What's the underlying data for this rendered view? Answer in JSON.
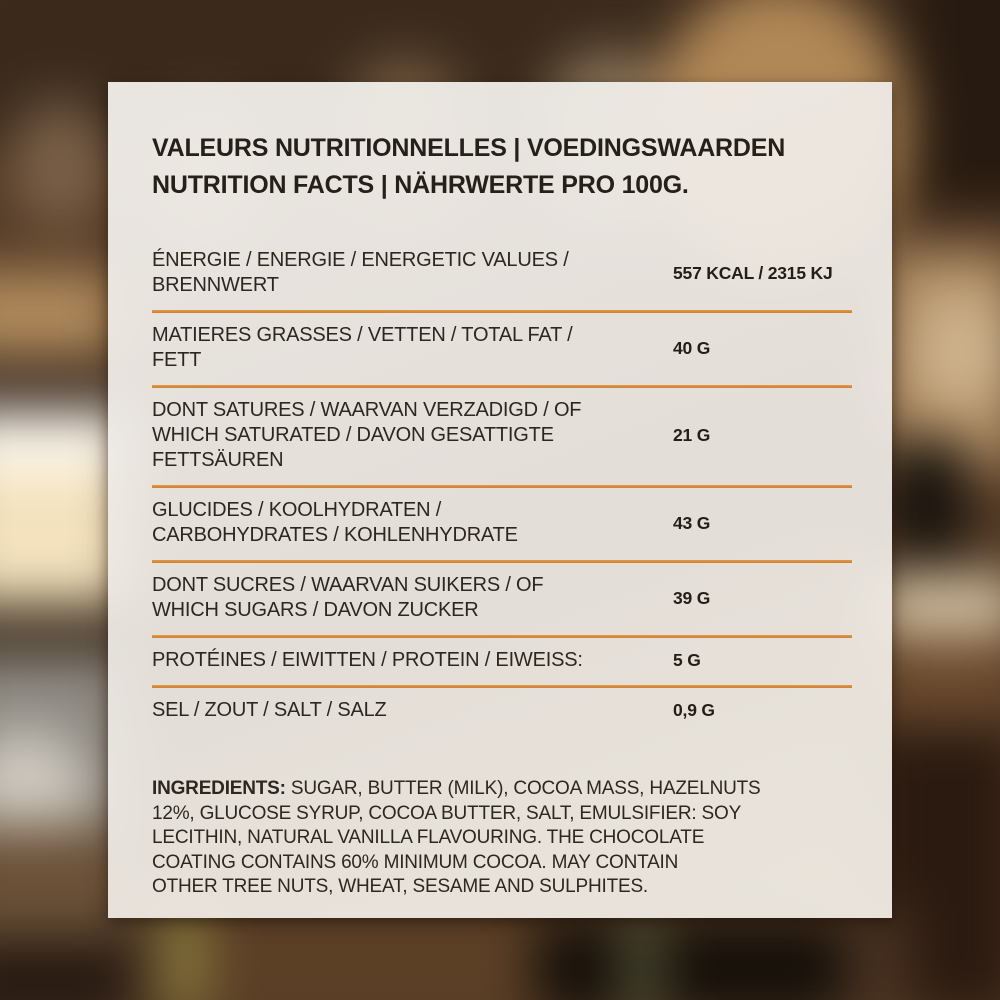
{
  "card": {
    "title_line1": "VALEURS NUTRITIONNELLES | VOEDINGSWAARDEN",
    "title_line2": "NUTRITION FACTS | NÄHRWERTE PRO 100G.",
    "rows": [
      {
        "label": "ÉNERGIE / ENERGIE / ENERGETIC VALUES /\nBRENNWERT",
        "value": "557 KCAL / 2315 KJ"
      },
      {
        "label": "MATIERES GRASSES / VETTEN / TOTAL FAT /\nFETT",
        "value": "40 G"
      },
      {
        "label": "DONT SATURES / WAARVAN VERZADIGD / OF\nWHICH SATURATED / DAVON GESATTIGTE\nFETTSÄUREN",
        "value": "21 G"
      },
      {
        "label": "GLUCIDES / KOOLHYDRATEN /\nCARBOHYDRATES / KOHLENHYDRATE",
        "value": "43 G"
      },
      {
        "label": "DONT SUCRES / WAARVAN SUIKERS / OF\nWHICH SUGARS / DAVON ZUCKER",
        "value": "39 G"
      },
      {
        "label": "PROTÉINES / EIWITTEN / PROTEIN / EIWEISS:",
        "value": "5 G"
      },
      {
        "label": "SEL / ZOUT / SALT / SALZ",
        "value": "0,9 G"
      }
    ],
    "ingredients_label": "INGREDIENTS:",
    "ingredients_text": " SUGAR, BUTTER (MILK), COCOA MASS, HAZELNUTS\n12%, GLUCOSE SYRUP, COCOA BUTTER, SALT, EMULSIFIER: SOY\nLECITHIN, NATURAL VANILLA FLAVOURING. THE CHOCOLATE\nCOATING CONTAINS 60% MINIMUM COCOA. MAY CONTAIN\nOTHER TREE NUTS, WHEAT, SESAME AND SULPHITES.",
    "colors": {
      "divider_orange": "#DB8E3A",
      "text": "#2B241D",
      "card_background": "#EFEBE6"
    }
  }
}
